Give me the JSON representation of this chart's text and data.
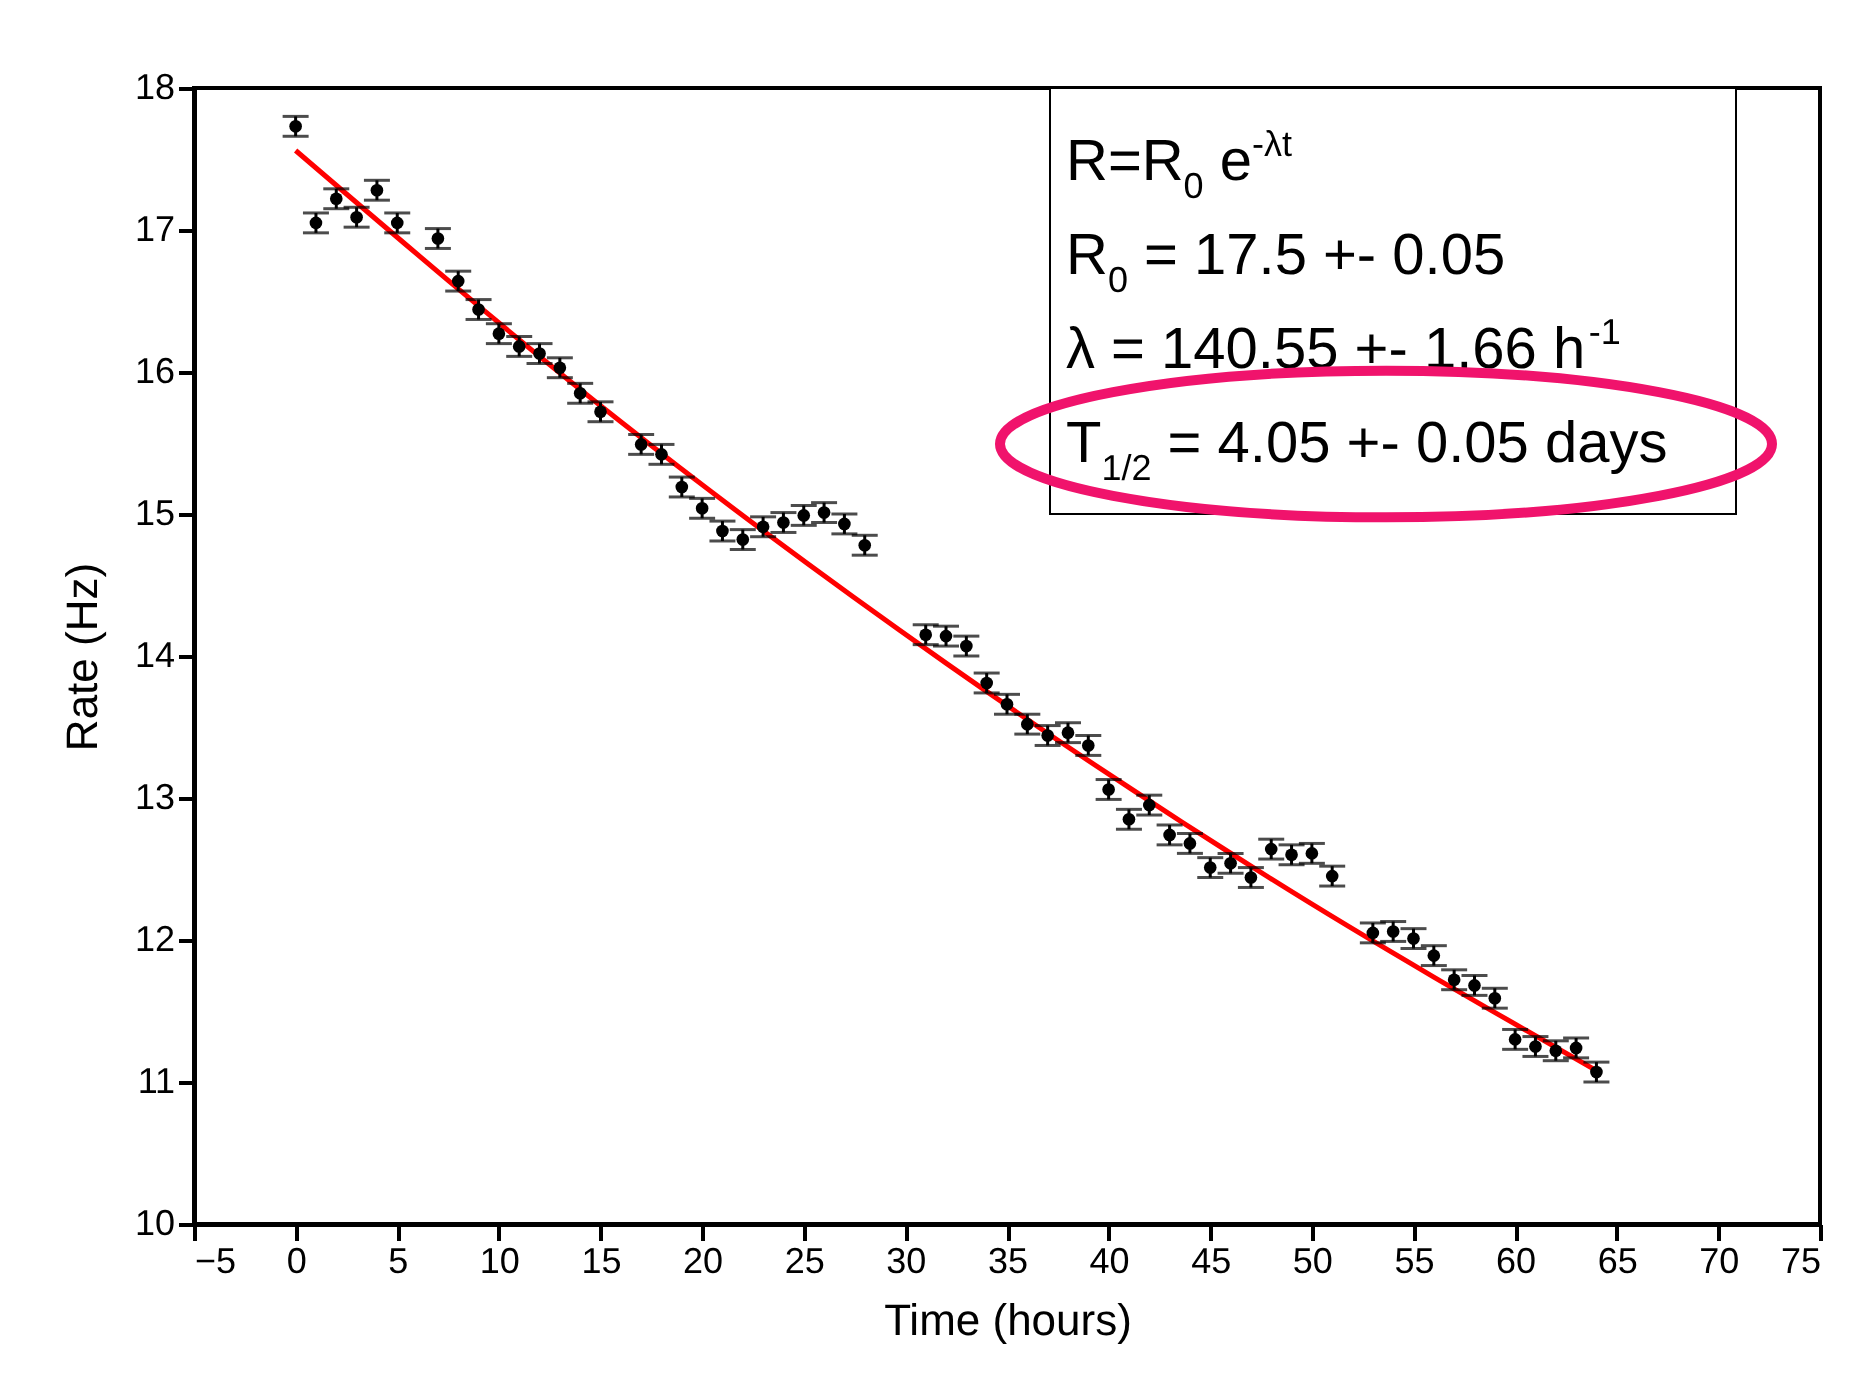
{
  "chart_data": {
    "type": "scatter",
    "xlabel": "Time (hours)",
    "ylabel": "Rate (Hz)",
    "xlim": [
      -5,
      75
    ],
    "xticks": [
      -5,
      0,
      5,
      10,
      15,
      20,
      25,
      30,
      35,
      40,
      45,
      50,
      55,
      60,
      65,
      70,
      75
    ],
    "ylim": [
      10,
      18
    ],
    "yticks": [
      10,
      11,
      12,
      13,
      14,
      15,
      16,
      17,
      18
    ],
    "grid": false,
    "marker": "circle",
    "series": [
      {
        "type": "scatter",
        "color": "#000000",
        "x": [
          0,
          1,
          2,
          3,
          4,
          5,
          7,
          8,
          9,
          10,
          11,
          12,
          13,
          14,
          15,
          17,
          18,
          19,
          20,
          21,
          22,
          23,
          24,
          25,
          26,
          27,
          28,
          31,
          32,
          33,
          34,
          35,
          36,
          37,
          38,
          39,
          40,
          41,
          42,
          43,
          44,
          45,
          46,
          47,
          48,
          49,
          50,
          51,
          53,
          54,
          55,
          56,
          57,
          58,
          59,
          60,
          61,
          62,
          63,
          64
        ],
        "values": [
          17.73,
          17.05,
          17.22,
          17.09,
          17.28,
          17.05,
          16.94,
          16.64,
          16.44,
          16.27,
          16.18,
          16.13,
          16.03,
          15.85,
          15.72,
          15.49,
          15.42,
          15.19,
          15.04,
          14.88,
          14.82,
          14.91,
          14.94,
          14.99,
          15.01,
          14.93,
          14.78,
          14.15,
          14.14,
          14.07,
          13.81,
          13.66,
          13.52,
          13.44,
          13.46,
          13.37,
          13.06,
          12.85,
          12.95,
          12.74,
          12.68,
          12.51,
          12.54,
          12.44,
          12.64,
          12.6,
          12.61,
          12.45,
          12.05,
          12.06,
          12.01,
          11.89,
          11.72,
          11.68,
          11.59,
          11.3,
          11.25,
          11.22,
          11.24,
          11.07
        ],
        "errors": [
          0.07,
          0.07,
          0.07,
          0.07,
          0.07,
          0.07,
          0.07,
          0.07,
          0.07,
          0.07,
          0.07,
          0.07,
          0.07,
          0.07,
          0.07,
          0.07,
          0.07,
          0.07,
          0.07,
          0.07,
          0.07,
          0.07,
          0.07,
          0.07,
          0.07,
          0.07,
          0.07,
          0.07,
          0.07,
          0.07,
          0.07,
          0.07,
          0.07,
          0.07,
          0.07,
          0.07,
          0.07,
          0.07,
          0.07,
          0.07,
          0.07,
          0.07,
          0.07,
          0.07,
          0.07,
          0.07,
          0.07,
          0.07,
          0.07,
          0.07,
          0.07,
          0.07,
          0.07,
          0.07,
          0.07,
          0.07,
          0.07,
          0.07,
          0.07,
          0.07
        ]
      },
      {
        "type": "line",
        "marker": "none",
        "color": "#ff0000",
        "x": [
          0,
          16,
          32,
          48,
          64
        ],
        "values": [
          17.56,
          15.65,
          13.95,
          12.43,
          11.08
        ]
      }
    ],
    "annotations": [
      "R=R$_{0}$ e$^{-λt}$",
      "R$_{0}$ = 17.5 +- 0.05",
      "λ = 140.55 +- 1.66 h$^{-1}$",
      "T$_{1/2}$ = 4.05 +- 0.05 days"
    ]
  }
}
